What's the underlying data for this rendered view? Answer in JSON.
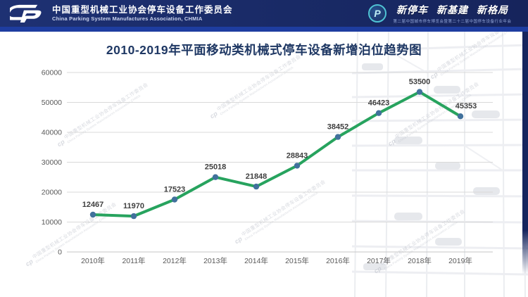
{
  "header": {
    "org_cn": "中国重型机械工业协会停车设备工作委员会",
    "org_en": "China Parking System Manufactures Association, CHMIA",
    "event": {
      "logo_text": "P",
      "slogan1": "新停车",
      "slogan2": "新基建",
      "slogan3": "新格局",
      "subline": "第二届中国城市停车博览会暨第二十二届中国停车设备行业年会"
    }
  },
  "title": "2010-2019年平面移动类机械式停车设备新增泊位趋势图",
  "watermark": {
    "logo": "cp",
    "cn": "中国重型机械工业协会停车设备工作委员会",
    "en": "China Parking System Manufactures Association,CHMIA"
  },
  "colors": {
    "header_bg": "#192a66",
    "header_accent": "#1e3da0",
    "title_color": "#1f3864",
    "grid": "#d9d9d9",
    "axis": "#c6c6c6",
    "tick_label": "#595959",
    "data_label": "#404040"
  },
  "chart_data": {
    "type": "line",
    "title": "2010-2019年平面移动类机械式停车设备新增泊位趋势图",
    "categories": [
      "2010年",
      "2011年",
      "2012年",
      "2013年",
      "2014年",
      "2015年",
      "2016年",
      "2017年",
      "2018年",
      "2019年"
    ],
    "series": [
      {
        "name": "平面移动类机械式停车设备新增泊位",
        "values": [
          12467,
          11970,
          17523,
          25018,
          21848,
          28843,
          38452,
          46423,
          53500,
          45353
        ]
      }
    ],
    "xlabel": "",
    "ylabel": "",
    "ylim": [
      0,
      60000
    ],
    "yticks": [
      0,
      10000,
      20000,
      30000,
      40000,
      50000,
      60000
    ],
    "grid": true,
    "legend_position": "none",
    "data_labels": true,
    "line_color": "#27a35e",
    "marker_color": "#41719c"
  }
}
